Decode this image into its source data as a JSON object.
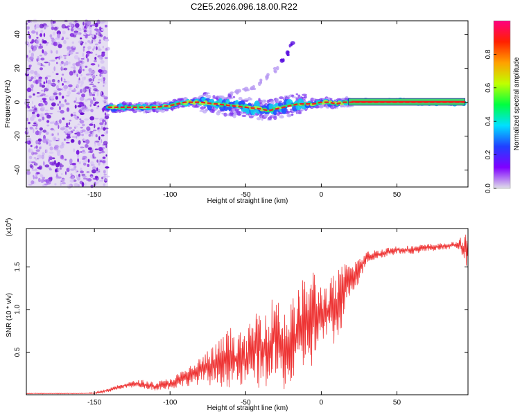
{
  "title": "C2E5.2026.096.18.00.R22",
  "chart_data": [
    {
      "type": "heatmap",
      "title": "C2E5.2026.096.18.00.R22",
      "xlabel": "Height of straight line (km)",
      "ylabel": "Frequency (Hz)",
      "xlim": [
        -195,
        97
      ],
      "ylim": [
        -50,
        48
      ],
      "xticks": [
        -150,
        -100,
        -50,
        0,
        50
      ],
      "yticks": [
        -40,
        -20,
        0,
        20,
        40
      ],
      "noise_region_x": [
        -195,
        -141
      ],
      "ridge": {
        "x": [
          -141,
          -130,
          -120,
          -110,
          -100,
          -90,
          -80,
          -70,
          -60,
          -50,
          -40,
          -35,
          -30,
          -25,
          -20,
          -15,
          -10,
          -5,
          0,
          5,
          10,
          15,
          20,
          30,
          40,
          50,
          60,
          70,
          80,
          90,
          95
        ],
        "y": [
          -3,
          -3,
          -3,
          -3,
          -2,
          0,
          0,
          -1,
          -2,
          -3,
          -4,
          -5,
          -4,
          -3,
          -2,
          -1,
          -1,
          -1,
          0,
          0,
          -1,
          0,
          0,
          0,
          0,
          0,
          0,
          0,
          0,
          0,
          0
        ]
      },
      "secondary_trace": {
        "x": [
          -60,
          -55,
          -50,
          -45,
          -40,
          -35,
          -30,
          -25,
          -22,
          -20
        ],
        "y": [
          5,
          6,
          7,
          9,
          12,
          15,
          19,
          24,
          29,
          34
        ]
      },
      "colorbar": {
        "label": "Normalized spectral amplitude",
        "ticks": [
          "0.0",
          "0.2",
          "0.4",
          "0.6",
          "0.8"
        ],
        "range": [
          0,
          1
        ],
        "colors": [
          "#e0e0e8",
          "#8000ff",
          "#2040ff",
          "#00e0ff",
          "#00ff40",
          "#c0ff00",
          "#ffa000",
          "#ff2000",
          "#ff0080"
        ]
      }
    },
    {
      "type": "line",
      "xlabel": "Height of straight line (km)",
      "ylabel": "SNR (10 * v/v)",
      "scale_label": "(x10",
      "scale_exp": "4",
      "scale_close": ")",
      "xlim": [
        -195,
        97
      ],
      "ylim": [
        0,
        1.95
      ],
      "xticks": [
        -150,
        -100,
        -50,
        0,
        50
      ],
      "yticks": [
        "0.5",
        "1.0",
        "1.5"
      ],
      "color": "#ee3333",
      "envelope": {
        "x": [
          -195,
          -160,
          -150,
          -140,
          -130,
          -120,
          -110,
          -100,
          -90,
          -80,
          -70,
          -60,
          -50,
          -45,
          -40,
          -35,
          -30,
          -25,
          -20,
          -15,
          -10,
          -5,
          0,
          5,
          10,
          15,
          20,
          25,
          30,
          40,
          50,
          60,
          70,
          80,
          90,
          97
        ],
        "low": [
          0.01,
          0.01,
          0.01,
          0.03,
          0.08,
          0.08,
          0.05,
          0.06,
          0.1,
          0.12,
          0.1,
          0.08,
          0.08,
          0.1,
          0.05,
          0.1,
          0.1,
          0.05,
          0.05,
          0.1,
          0.35,
          0.3,
          0.6,
          0.6,
          0.55,
          0.9,
          1.2,
          1.3,
          1.55,
          1.6,
          1.65,
          1.65,
          1.68,
          1.7,
          1.72,
          1.45
        ],
        "high": [
          0.02,
          0.02,
          0.03,
          0.08,
          0.14,
          0.18,
          0.15,
          0.2,
          0.3,
          0.45,
          0.6,
          0.8,
          0.7,
          0.95,
          1.1,
          1.0,
          1.3,
          1.0,
          1.1,
          1.3,
          1.4,
          1.5,
          1.3,
          1.35,
          1.45,
          1.55,
          1.58,
          1.62,
          1.68,
          1.72,
          1.75,
          1.75,
          1.77,
          1.78,
          1.8,
          1.95
        ]
      }
    }
  ]
}
